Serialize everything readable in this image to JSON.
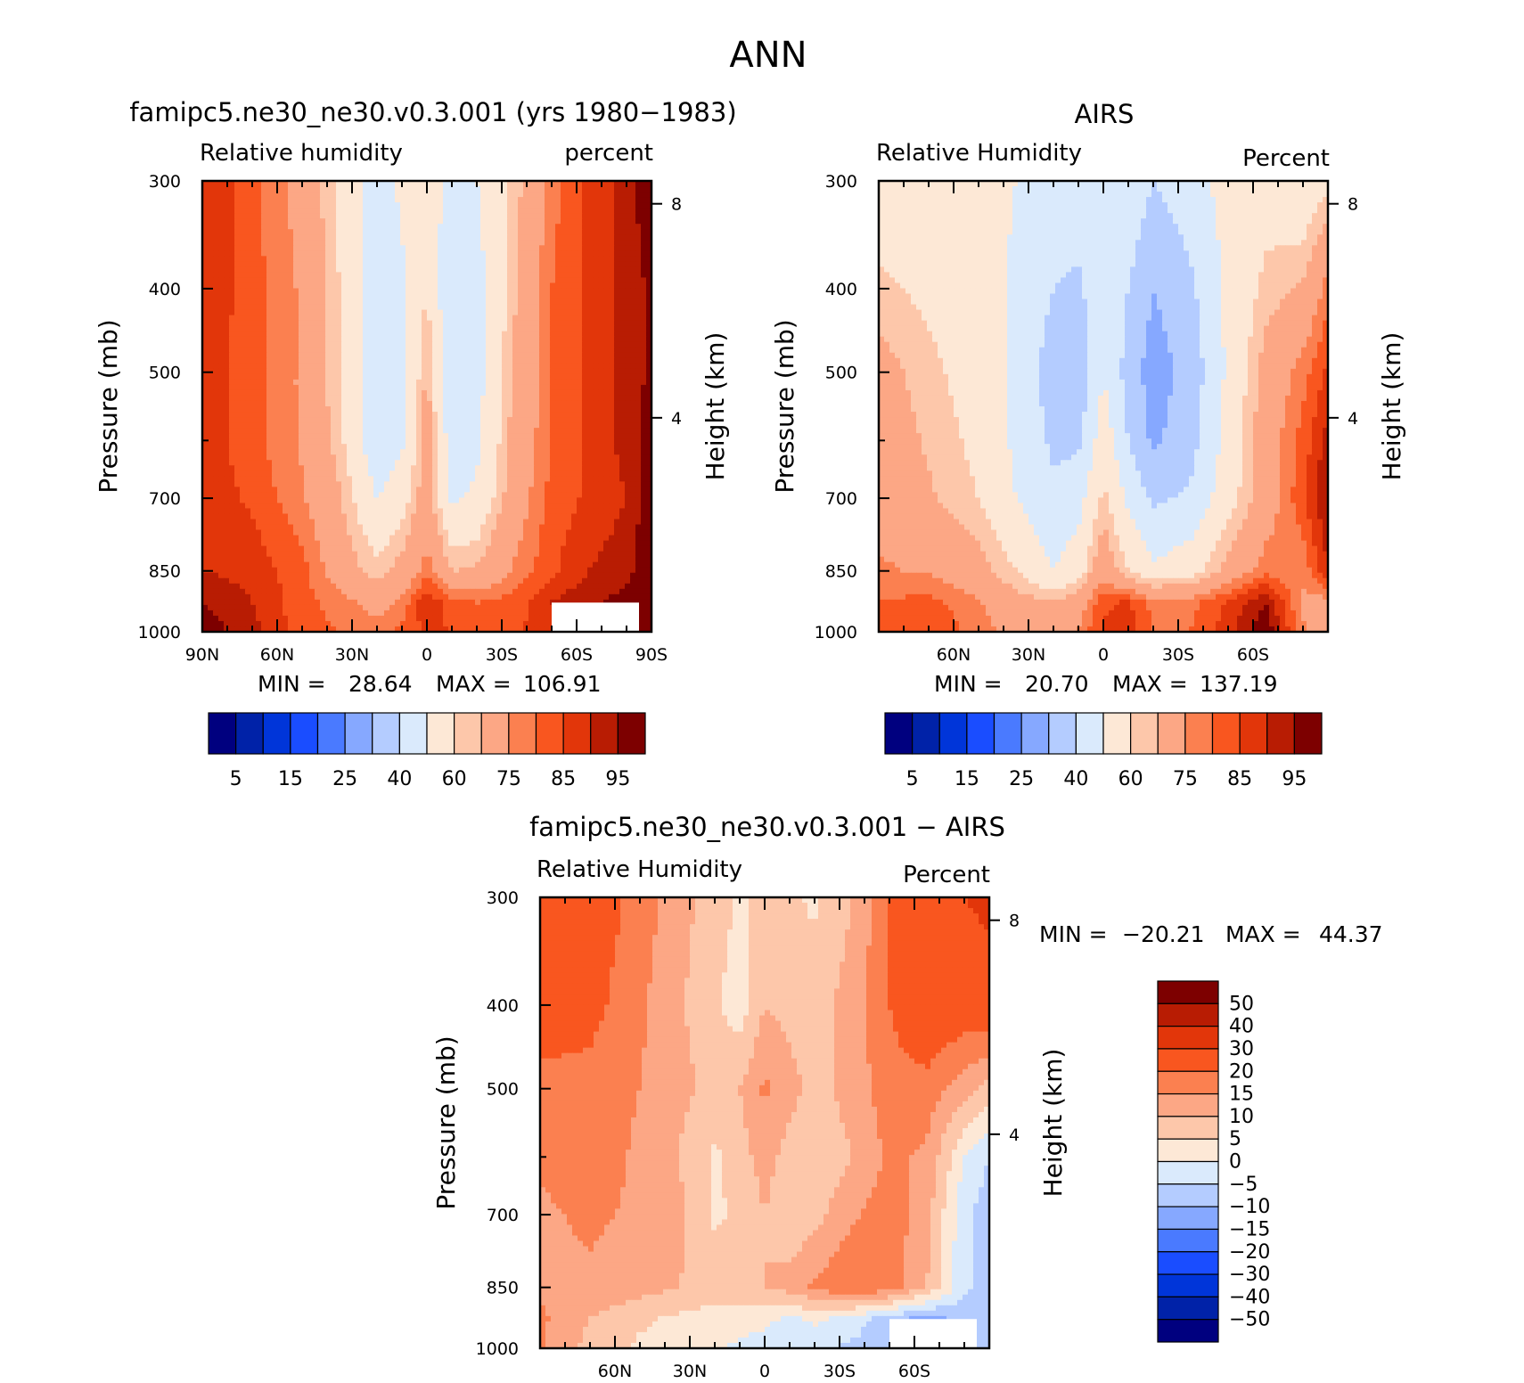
{
  "figure": {
    "title": "ANN"
  },
  "panels": [
    {
      "id": "model",
      "title": "famipc5.ne30_ne30.v0.3.001 (yrs 1980−1983)",
      "left_label": "Relative humidity",
      "right_label": "percent",
      "ylabel": "Pressure (mb)",
      "y2label": "Height (km)",
      "pressure_ticks": [
        "300",
        "400",
        "500",
        "700",
        "850",
        "1000"
      ],
      "height_ticks": [
        "8",
        "4"
      ],
      "lat_ticks": [
        "90N",
        "60N",
        "30N",
        "0",
        "30S",
        "60S",
        "90S"
      ],
      "min_label": "MIN =",
      "min_value": "28.64",
      "max_label": "MAX =",
      "max_value": "106.91",
      "colorbar_labels": [
        "5",
        "15",
        "25",
        "40",
        "60",
        "75",
        "85",
        "95"
      ]
    },
    {
      "id": "obs",
      "title": "AIRS",
      "left_label": "Relative Humidity",
      "right_label": "Percent",
      "ylabel": "Pressure (mb)",
      "y2label": "Height (km)",
      "pressure_ticks": [
        "300",
        "400",
        "500",
        "700",
        "850",
        "1000"
      ],
      "height_ticks": [
        "8",
        "4"
      ],
      "lat_ticks": [
        "60N",
        "30N",
        "0",
        "30S",
        "60S"
      ],
      "min_label": "MIN =",
      "min_value": "20.70",
      "max_label": "MAX =",
      "max_value": "137.19",
      "colorbar_labels": [
        "5",
        "15",
        "25",
        "40",
        "60",
        "75",
        "85",
        "95"
      ]
    },
    {
      "id": "diff",
      "title": "famipc5.ne30_ne30.v0.3.001 − AIRS",
      "left_label": "Relative Humidity",
      "right_label": "Percent",
      "ylabel": "Pressure (mb)",
      "y2label": "Height (km)",
      "pressure_ticks": [
        "300",
        "400",
        "500",
        "700",
        "850",
        "1000"
      ],
      "height_ticks": [
        "8",
        "4"
      ],
      "lat_ticks": [
        "60N",
        "30N",
        "0",
        "30S",
        "60S"
      ],
      "min_label": "MIN =",
      "min_value": "−20.21",
      "max_label": "MAX =",
      "max_value": "44.37",
      "colorbar_labels": [
        "50",
        "40",
        "30",
        "20",
        "15",
        "10",
        "5",
        "0",
        "−5",
        "−10",
        "−15",
        "−20",
        "−30",
        "−40",
        "−50"
      ]
    }
  ],
  "colors": {
    "abs_scale": [
      "#00007f",
      "#0022a8",
      "#0035d9",
      "#1a4dff",
      "#4a7aff",
      "#86a8ff",
      "#b4ccff",
      "#daeafc",
      "#fde8d6",
      "#fdc7aa",
      "#fca785",
      "#fb8050",
      "#f9561f",
      "#e2360a",
      "#b81c03",
      "#7d0000"
    ],
    "diff_scale": [
      "#7d0000",
      "#b81c03",
      "#e2360a",
      "#f9561f",
      "#fb8050",
      "#fca785",
      "#fdc7aa",
      "#fde8d6",
      "#daeafc",
      "#b4ccff",
      "#86a8ff",
      "#4a7aff",
      "#1a4dff",
      "#0035d9",
      "#0022a8",
      "#00007f"
    ]
  },
  "chart_data": [
    {
      "type": "heatmap",
      "title": "famipc5.ne30_ne30.v0.3.001 (yrs 1980−1983)",
      "variable": "Relative humidity",
      "units": "percent",
      "xlabel": "",
      "ylabel": "Pressure (mb)",
      "x_ticks": [
        "90N",
        "60N",
        "30N",
        "0",
        "30S",
        "60S",
        "90S"
      ],
      "x": [
        90,
        70,
        50,
        35,
        20,
        10,
        0,
        -10,
        -20,
        -35,
        -50,
        -65,
        -80,
        -90
      ],
      "y": [
        300,
        400,
        500,
        600,
        700,
        850,
        925,
        1000
      ],
      "values": [
        [
          90,
          82,
          72,
          58,
          45,
          52,
          58,
          44,
          50,
          62,
          78,
          86,
          92,
          100
        ],
        [
          90,
          82,
          74,
          60,
          42,
          48,
          60,
          40,
          46,
          64,
          80,
          86,
          92,
          96
        ],
        [
          88,
          82,
          74,
          60,
          42,
          46,
          66,
          40,
          46,
          66,
          80,
          86,
          92,
          96
        ],
        [
          88,
          82,
          74,
          62,
          42,
          48,
          70,
          44,
          48,
          68,
          80,
          86,
          92,
          98
        ],
        [
          88,
          84,
          76,
          66,
          50,
          56,
          70,
          48,
          52,
          70,
          82,
          86,
          90,
          99
        ],
        [
          90,
          88,
          82,
          70,
          62,
          68,
          78,
          65,
          66,
          76,
          84,
          90,
          93,
          100
        ],
        [
          95,
          90,
          82,
          78,
          72,
          76,
          90,
          82,
          80,
          82,
          90,
          94,
          97,
          100
        ],
        [
          98,
          92,
          82,
          80,
          78,
          82,
          86,
          85,
          82,
          84,
          88,
          92,
          95,
          100
        ]
      ],
      "ylim": [
        300,
        1000
      ],
      "y_scale": "log",
      "min": 28.64,
      "max": 106.91,
      "contour_levels": [
        5,
        10,
        15,
        20,
        25,
        30,
        40,
        50,
        60,
        65,
        75,
        80,
        85,
        90,
        95
      ],
      "missing_region": "south of ~50S below ~920 mb"
    },
    {
      "type": "heatmap",
      "title": "AIRS",
      "variable": "Relative Humidity",
      "units": "Percent",
      "xlabel": "",
      "ylabel": "Pressure (mb)",
      "x_ticks": [
        "60N",
        "30N",
        "0",
        "30S",
        "60S"
      ],
      "x": [
        90,
        70,
        50,
        35,
        20,
        10,
        0,
        -10,
        -20,
        -35,
        -50,
        -65,
        -80,
        -90
      ],
      "y": [
        300,
        400,
        500,
        600,
        700,
        850,
        925,
        1000
      ],
      "values": [
        [
          52,
          55,
          55,
          50,
          48,
          46,
          50,
          48,
          40,
          46,
          54,
          56,
          52,
          58
        ],
        [
          62,
          58,
          55,
          48,
          40,
          38,
          48,
          40,
          30,
          38,
          52,
          62,
          66,
          78
        ],
        [
          68,
          62,
          56,
          48,
          35,
          32,
          50,
          36,
          25,
          34,
          52,
          68,
          78,
          86
        ],
        [
          70,
          64,
          58,
          48,
          38,
          38,
          56,
          40,
          28,
          36,
          54,
          70,
          82,
          92
        ],
        [
          72,
          66,
          60,
          50,
          42,
          46,
          62,
          48,
          38,
          42,
          56,
          70,
          84,
          96
        ],
        [
          76,
          74,
          68,
          60,
          50,
          56,
          72,
          60,
          52,
          56,
          68,
          78,
          76,
          90
        ],
        [
          80,
          82,
          76,
          68,
          66,
          70,
          84,
          86,
          78,
          78,
          86,
          95,
          74,
          72
        ],
        [
          84,
          84,
          78,
          72,
          70,
          76,
          86,
          88,
          80,
          80,
          88,
          100,
          76,
          70
        ]
      ],
      "ylim": [
        300,
        1000
      ],
      "y_scale": "log",
      "min": 20.7,
      "max": 137.19,
      "contour_levels": [
        5,
        10,
        15,
        20,
        25,
        30,
        40,
        50,
        60,
        65,
        75,
        80,
        85,
        90,
        95
      ]
    },
    {
      "type": "heatmap",
      "title": "famipc5.ne30_ne30.v0.3.001 − AIRS",
      "variable": "Relative Humidity",
      "units": "Percent",
      "xlabel": "",
      "ylabel": "Pressure (mb)",
      "x_ticks": [
        "60N",
        "30N",
        "0",
        "30S",
        "60S"
      ],
      "x": [
        90,
        70,
        50,
        35,
        20,
        10,
        0,
        -10,
        -20,
        -35,
        -50,
        -65,
        -80,
        -90
      ],
      "y": [
        300,
        400,
        500,
        600,
        700,
        850,
        925,
        1000
      ],
      "values": [
        [
          28,
          24,
          18,
          12,
          8,
          4,
          8,
          6,
          4,
          10,
          20,
          28,
          30,
          32
        ],
        [
          24,
          22,
          16,
          11,
          6,
          2,
          10,
          8,
          8,
          12,
          20,
          26,
          24,
          26
        ],
        [
          18,
          18,
          15,
          12,
          8,
          10,
          16,
          12,
          8,
          12,
          18,
          18,
          12,
          8
        ],
        [
          16,
          18,
          14,
          10,
          4,
          8,
          12,
          8,
          6,
          10,
          16,
          14,
          0,
          -5
        ],
        [
          14,
          16,
          14,
          12,
          4,
          6,
          10,
          6,
          8,
          14,
          18,
          12,
          -4,
          -8
        ],
        [
          14,
          14,
          12,
          10,
          8,
          10,
          10,
          12,
          16,
          20,
          18,
          10,
          -4,
          -8
        ],
        [
          16,
          10,
          6,
          4,
          2,
          2,
          1,
          -1,
          1,
          -2,
          -8,
          -12,
          -8,
          -6
        ],
        [
          16,
          8,
          4,
          2,
          1,
          -1,
          -2,
          -3,
          -4,
          -6,
          -10,
          -14,
          -10,
          -8
        ]
      ],
      "ylim": [
        300,
        1000
      ],
      "y_scale": "log",
      "min": -20.21,
      "max": 44.37,
      "contour_levels": [
        -50,
        -40,
        -30,
        -20,
        -15,
        -10,
        -5,
        0,
        5,
        10,
        15,
        20,
        30,
        40,
        50
      ],
      "missing_region": "south of ~50S below ~920 mb"
    }
  ]
}
